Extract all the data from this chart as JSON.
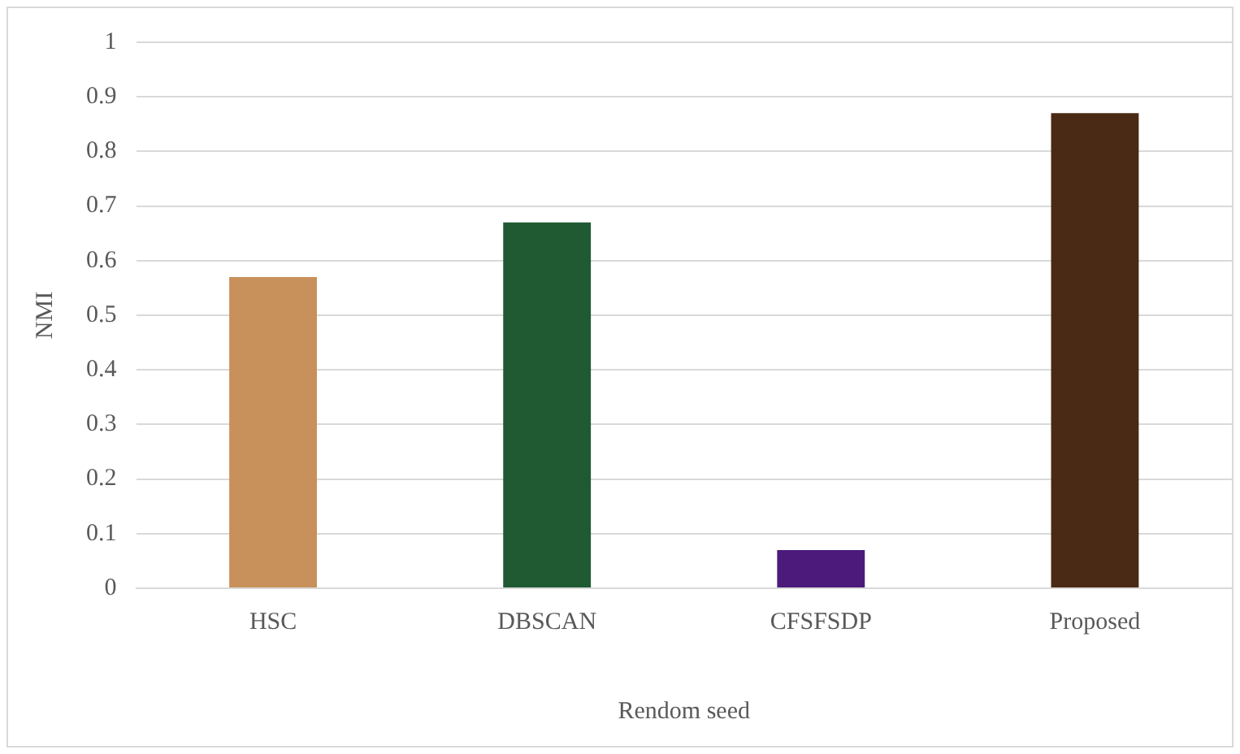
{
  "chart_data": {
    "type": "bar",
    "xlabel": "Rendom seed",
    "ylabel": "NMI",
    "categories": [
      "HSC",
      "DBSCAN",
      "CFSFSDP",
      "Proposed"
    ],
    "values": [
      0.57,
      0.67,
      0.07,
      0.87
    ],
    "colors": [
      "#c8905a",
      "#1f5a32",
      "#4b1a7a",
      "#4a2a14"
    ],
    "ylim": [
      0,
      1
    ],
    "yticks": [
      0,
      0.1,
      0.2,
      0.3,
      0.4,
      0.5,
      0.6,
      0.7,
      0.8,
      0.9,
      1
    ],
    "grid": "y"
  }
}
